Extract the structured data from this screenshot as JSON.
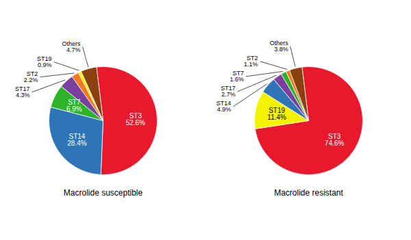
{
  "chart_data": [
    {
      "type": "pie",
      "title": "Macrolide susceptible",
      "categories": [
        "ST3",
        "ST14",
        "ST7",
        "ST17",
        "ST2",
        "ST19",
        "Others"
      ],
      "values": [
        52.6,
        28.4,
        6.9,
        4.3,
        2.2,
        0.9,
        4.7
      ],
      "value_labels": [
        "52.6%",
        "28.4%",
        "6.9%",
        "4.3%",
        "2.2%",
        "0.9%",
        "4.7%"
      ],
      "colors": [
        "#e8192c",
        "#2e75b6",
        "#2db228",
        "#7b3f9e",
        "#f47920",
        "#f5f200",
        "#8b4010"
      ],
      "data_labels": true
    },
    {
      "type": "pie",
      "title": "Macrolide resistant",
      "categories": [
        "ST3",
        "ST19",
        "ST14",
        "ST17",
        "ST7",
        "ST2",
        "Others"
      ],
      "values": [
        74.6,
        11.4,
        4.9,
        2.7,
        1.6,
        1.1,
        3.8
      ],
      "value_labels": [
        "74.6%",
        "11.4%",
        "4.9%",
        "2.7%",
        "1.6%",
        "1.1%",
        "3.8%"
      ],
      "colors": [
        "#e8192c",
        "#f5f200",
        "#2e75b6",
        "#7b3f9e",
        "#2db228",
        "#f47920",
        "#8b4010"
      ],
      "data_labels": true
    }
  ]
}
